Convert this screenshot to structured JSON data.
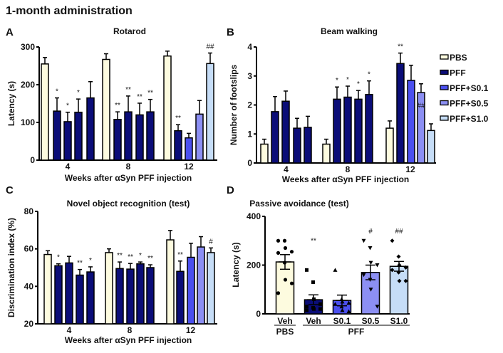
{
  "title": "1-month administration",
  "legend": [
    "PBS",
    "PFF",
    "PFF+S0.1",
    "PFF+S0.5",
    "PFF+S1.0"
  ],
  "colors": {
    "PBS": "#fdfbdf",
    "PFF": "#0b0d78",
    "PFF+S0.1": "#4b50ef",
    "PFF+S0.5": "#8c8ff3",
    "PFF+S1.0": "#c6ddf7"
  },
  "chart_data": [
    {
      "panel": "A",
      "type": "bar",
      "title": "Rotarod",
      "xlabel": "Weeks after αSyn PFF injection",
      "ylabel": "Latency (s)",
      "ylim": [
        0,
        300
      ],
      "yticks": [
        "0",
        "100",
        "200",
        "300"
      ],
      "categories": [
        "4",
        "8",
        "12"
      ],
      "series": [
        {
          "name": "PBS",
          "values": [
            255,
            267,
            276
          ],
          "err": [
            17,
            15,
            13
          ],
          "ann": [
            "",
            "",
            ""
          ]
        },
        {
          "name": "PFF",
          "values": [
            130,
            108,
            78
          ],
          "err": [
            35,
            20,
            16
          ],
          "ann": [
            "*",
            "**",
            "**"
          ]
        },
        {
          "name": "PFF+S0.1",
          "values": [
            102,
            128,
            59
          ],
          "err": [
            25,
            42,
            12
          ],
          "ann": [
            "*",
            "**",
            ""
          ]
        },
        {
          "name": "PFF+S0.5",
          "values": [
            127,
            120,
            122
          ],
          "err": [
            35,
            31,
            36
          ],
          "ann": [
            "*",
            "**",
            ""
          ]
        },
        {
          "name": "PFF+S1.0",
          "values": [
            165,
            128,
            256
          ],
          "err": [
            43,
            33,
            28
          ],
          "ann": [
            "",
            "**",
            "##"
          ]
        }
      ]
    },
    {
      "panel": "B",
      "type": "bar",
      "title": "Beam walking",
      "xlabel": "Weeks after αSyn PFF injection",
      "ylabel": "Number of footslips",
      "ylim": [
        0,
        4
      ],
      "yticks": [
        "0",
        "1",
        "2",
        "3",
        "4"
      ],
      "categories": [
        "4",
        "8",
        "12"
      ],
      "series": [
        {
          "name": "PBS",
          "values": [
            0.65,
            0.65,
            1.2
          ],
          "err": [
            0.17,
            0.17,
            0.25
          ],
          "ann": [
            "",
            "",
            ""
          ]
        },
        {
          "name": "PFF",
          "values": [
            1.77,
            2.2,
            3.43
          ],
          "err": [
            0.52,
            0.42,
            0.36
          ],
          "ann": [
            "",
            "*",
            "**"
          ]
        },
        {
          "name": "PFF+S0.1",
          "values": [
            2.13,
            2.27,
            2.85
          ],
          "err": [
            0.35,
            0.38,
            0.52
          ],
          "ann": [
            "",
            "*",
            ""
          ]
        },
        {
          "name": "PFF+S0.5",
          "values": [
            1.2,
            2.2,
            2.43
          ],
          "err": [
            0.34,
            0.3,
            0.3
          ],
          "ann": [
            "",
            "*",
            ""
          ]
        },
        {
          "name": "PFF+S1.0",
          "values": [
            1.23,
            2.36,
            1.12
          ],
          "err": [
            0.38,
            0.47,
            0.23
          ],
          "ann": [
            "",
            "*",
            "##"
          ]
        }
      ]
    },
    {
      "panel": "C",
      "type": "bar",
      "title": "Novel object recognition (test)",
      "xlabel": "Weeks after αSyn PFF injection",
      "ylabel": "Discrimination index (%)",
      "ylim": [
        20,
        80
      ],
      "yticks": [
        "20",
        "40",
        "60",
        "80"
      ],
      "categories": [
        "4",
        "8",
        "12"
      ],
      "series": [
        {
          "name": "PBS",
          "values": [
            57,
            58,
            64.8
          ],
          "err": [
            2,
            2,
            5
          ],
          "ann": [
            "",
            "",
            ""
          ]
        },
        {
          "name": "PFF",
          "values": [
            51,
            49.5,
            48
          ],
          "err": [
            1,
            3.5,
            5.5
          ],
          "ann": [
            "*",
            "**",
            "**"
          ]
        },
        {
          "name": "PFF+S0.1",
          "values": [
            52.5,
            49.2,
            55.5
          ],
          "err": [
            3.5,
            3,
            7.5
          ],
          "ann": [
            "",
            "**",
            ""
          ]
        },
        {
          "name": "PFF+S0.5",
          "values": [
            46,
            52,
            61
          ],
          "err": [
            3,
            1,
            5.5
          ],
          "ann": [
            "**",
            "*",
            ""
          ]
        },
        {
          "name": "PFF+S1.0",
          "values": [
            47.7,
            50,
            58
          ],
          "err": [
            2.7,
            1.5,
            2.5
          ],
          "ann": [
            "*",
            "**",
            "#"
          ]
        }
      ]
    },
    {
      "panel": "D",
      "type": "bar",
      "title": "Passive avoidance (test)",
      "ylabel": "Latency (s)",
      "ylim": [
        0,
        400
      ],
      "yticks": [
        "0",
        "200",
        "400"
      ],
      "categories": [
        "Veh",
        "Veh",
        "S0.1",
        "S0.5",
        "S1.0"
      ],
      "group_labels": [
        "PBS",
        "PFF"
      ],
      "series": [
        {
          "name": "Latency",
          "values": [
            213,
            58,
            55,
            170,
            195
          ],
          "err": [
            30,
            20,
            22,
            30,
            20
          ],
          "ann": [
            "",
            "**",
            "",
            "#",
            "##"
          ]
        }
      ],
      "points": [
        [
          300,
          300,
          270,
          255,
          250,
          210,
          140,
          125,
          85
        ],
        [
          180,
          130,
          60,
          40,
          30,
          25,
          20,
          20,
          15
        ],
        [
          180,
          60,
          50,
          45,
          40,
          30,
          15,
          10
        ],
        [
          300,
          270,
          210,
          200,
          160,
          140,
          100,
          30
        ],
        [
          300,
          235,
          200,
          190,
          180,
          170,
          135,
          135
        ]
      ]
    }
  ]
}
